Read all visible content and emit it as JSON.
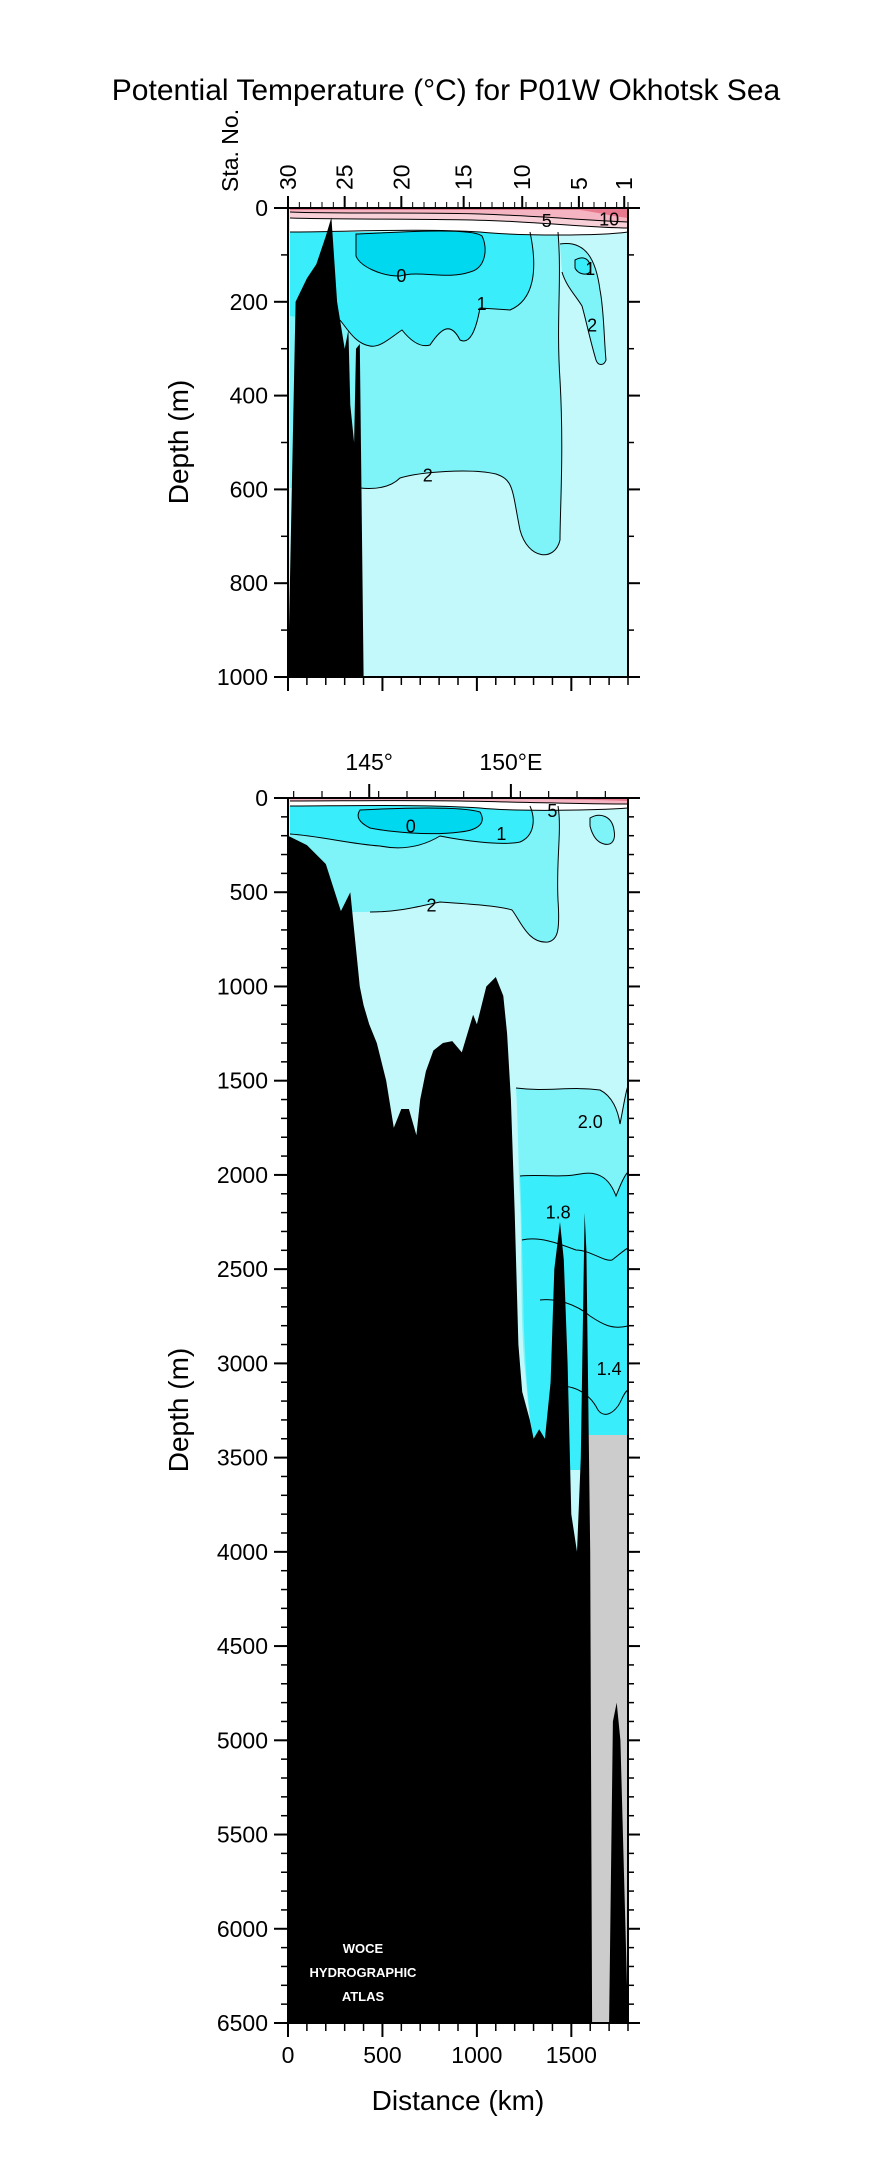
{
  "title": "Potential Temperature (°C) for P01W Okhotsk Sea",
  "logo": {
    "line1": "WOCE",
    "line2": "HYDROGRAPHIC",
    "line3": "ATLAS"
  },
  "colors": {
    "band_warm": "#e8788e",
    "band_light_red": "#f4b4c1",
    "band_pink": "#f7d0d8",
    "band_white": "#ffffff",
    "band_lt_blue": "#c4f9fb",
    "band_mid_blue": "#7ef3f8",
    "band_cyan": "#39eefa",
    "band_deep_blue": "#00d8f0",
    "no_data": "#cccccc",
    "bathymetry": "#000000"
  },
  "chart_data": [
    {
      "type": "contour-section",
      "panel": "upper",
      "title": "Potential Temperature (°C) for P01W Okhotsk Sea",
      "ylabel": "Depth (m)",
      "ylim": [
        1000,
        0
      ],
      "yticks": [
        "0",
        "200",
        "400",
        "600",
        "800",
        "1000"
      ],
      "xlim": [
        0,
        1800
      ],
      "station_axis_label": "Sta. No.",
      "stations": [
        {
          "label": "30",
          "distance_km": 0
        },
        {
          "label": "25",
          "distance_km": 300
        },
        {
          "label": "20",
          "distance_km": 600
        },
        {
          "label": "15",
          "distance_km": 930
        },
        {
          "label": "10",
          "distance_km": 1240
        },
        {
          "label": "5",
          "distance_km": 1540
        },
        {
          "label": "1",
          "distance_km": 1780
        }
      ],
      "contour_labels": [
        {
          "text": "0",
          "x_km": 600,
          "depth_m": 145
        },
        {
          "text": "1",
          "x_km": 1025,
          "depth_m": 205
        },
        {
          "text": "5",
          "x_km": 1370,
          "depth_m": 28
        },
        {
          "text": "10",
          "x_km": 1700,
          "depth_m": 25
        },
        {
          "text": "1",
          "x_km": 1600,
          "depth_m": 130
        },
        {
          "text": "2",
          "x_km": 1610,
          "depth_m": 250
        },
        {
          "text": "2",
          "x_km": 740,
          "depth_m": 570
        }
      ],
      "bathymetry": {
        "distance_km": [
          0,
          40,
          100,
          150,
          200,
          230,
          260,
          300,
          320,
          330,
          350,
          360,
          380,
          400,
          410,
          430,
          1800
        ],
        "depth_m": [
          1000,
          200,
          150,
          120,
          60,
          20,
          200,
          300,
          260,
          420,
          500,
          300,
          290,
          1000,
          1000,
          1000,
          1000
        ]
      }
    },
    {
      "type": "contour-section",
      "panel": "lower",
      "xlabel": "Distance (km)",
      "ylabel": "Depth (m)",
      "xlim": [
        0,
        1800
      ],
      "ylim": [
        6500,
        0
      ],
      "xticks": [
        "0",
        "500",
        "1000",
        "1500"
      ],
      "yticks": [
        "0",
        "500",
        "1000",
        "1500",
        "2000",
        "2500",
        "3000",
        "3500",
        "4000",
        "4500",
        "5000",
        "5500",
        "6000",
        "6500"
      ],
      "longitude_ticks": [
        {
          "label": "145°",
          "distance_km": 430
        },
        {
          "label": "150°E",
          "distance_km": 1180
        }
      ],
      "contour_labels": [
        {
          "text": "0",
          "x_km": 650,
          "depth_m": 150
        },
        {
          "text": "1",
          "x_km": 1130,
          "depth_m": 190
        },
        {
          "text": "5",
          "x_km": 1400,
          "depth_m": 70
        },
        {
          "text": "2",
          "x_km": 760,
          "depth_m": 570
        },
        {
          "text": "2.0",
          "x_km": 1600,
          "depth_m": 1720
        },
        {
          "text": "1.8",
          "x_km": 1430,
          "depth_m": 2200
        },
        {
          "text": "1.4",
          "x_km": 1700,
          "depth_m": 3030
        }
      ],
      "no_data_region": {
        "x_km": [
          1580,
          1800
        ],
        "depth_m": [
          3380,
          6500
        ]
      },
      "bathymetry": {
        "distance_km": [
          0,
          100,
          200,
          280,
          330,
          380,
          400,
          430,
          470,
          520,
          560,
          600,
          640,
          680,
          700,
          730,
          770,
          820,
          870,
          920,
          980,
          1000,
          1050,
          1100,
          1140,
          1160,
          1180,
          1200,
          1220,
          1240,
          1280,
          1300,
          1330,
          1360,
          1390,
          1410,
          1440,
          1460,
          1480,
          1500,
          1530,
          1550,
          1570,
          1580,
          1600,
          1610,
          1620,
          1650,
          1700,
          1720,
          1740,
          1760,
          1800
        ],
        "depth_m": [
          200,
          250,
          350,
          600,
          500,
          1000,
          1100,
          1200,
          1300,
          1500,
          1750,
          1650,
          1650,
          1790,
          1600,
          1450,
          1340,
          1300,
          1290,
          1350,
          1150,
          1200,
          1000,
          950,
          1050,
          1250,
          1600,
          2200,
          2900,
          3150,
          3300,
          3400,
          3350,
          3400,
          3100,
          2500,
          2250,
          2450,
          3000,
          3800,
          4000,
          3500,
          2200,
          2400,
          4000,
          6500,
          6500,
          6500,
          6500,
          4900,
          4800,
          5000,
          6500
        ]
      }
    }
  ]
}
